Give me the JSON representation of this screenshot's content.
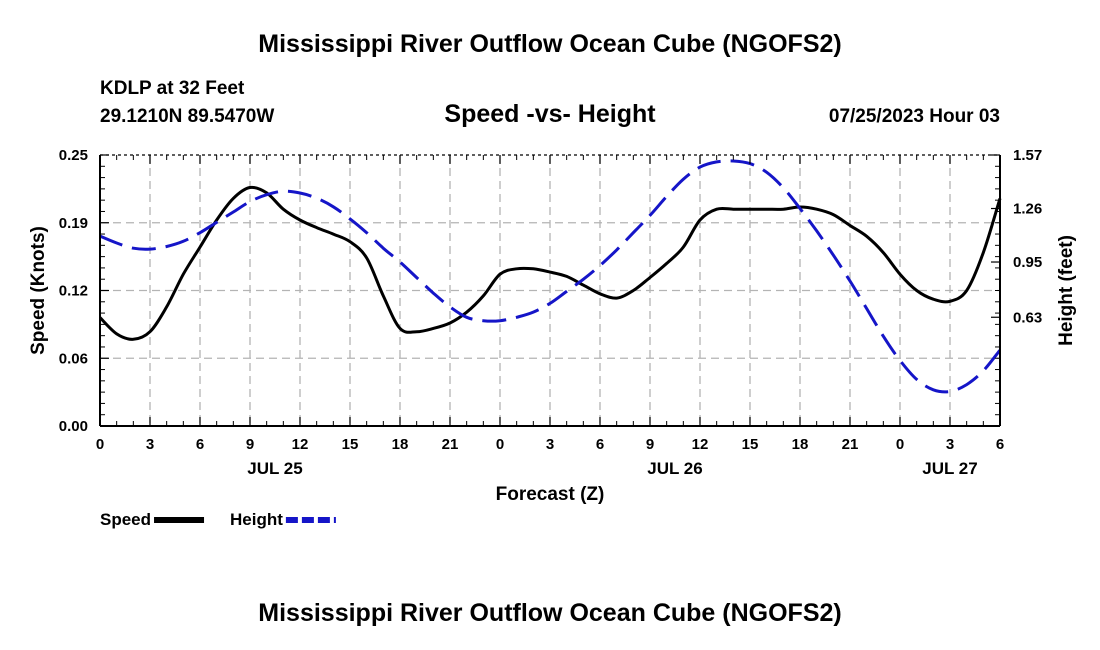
{
  "header": {
    "title": "Mississippi River Outflow Ocean Cube (NGOFS2)",
    "station": "KDLP at 32 Feet",
    "coords": "29.1210N  89.5470W",
    "subtitle": "Speed -vs- Height",
    "datetime": "07/25/2023 Hour 03"
  },
  "footer": {
    "title": "Mississippi River Outflow Ocean Cube (NGOFS2)"
  },
  "chart_data": {
    "type": "line",
    "title": "Speed -vs- Height",
    "xlabel": "Forecast (Z)",
    "ylabel": "Speed (Knots)",
    "y2label": "Height (feet)",
    "xlim": [
      0,
      54
    ],
    "ylim": [
      0,
      0.25
    ],
    "y2lim": [
      0,
      1.57
    ],
    "grid": true,
    "x_tick_labels": [
      "0",
      "3",
      "6",
      "9",
      "12",
      "15",
      "18",
      "21",
      "0",
      "3",
      "6",
      "9",
      "12",
      "15",
      "18",
      "21",
      "0",
      "3",
      "6"
    ],
    "y_tick_labels": [
      "0.00",
      "0.06",
      "0.12",
      "0.19",
      "0.25"
    ],
    "y2_tick_labels": [
      "0.63",
      "0.95",
      "1.26",
      "1.57"
    ],
    "date_labels": [
      {
        "label": "JUL 25",
        "x": 10.5
      },
      {
        "label": "JUL 26",
        "x": 34.5
      },
      {
        "label": "JUL 27",
        "x": 51
      }
    ],
    "series": [
      {
        "name": "Speed",
        "axis": "left",
        "color": "#000000",
        "dash": "solid",
        "x": [
          0,
          1,
          2,
          3,
          4,
          5,
          6,
          7,
          8,
          9,
          10,
          11,
          12,
          13,
          14,
          15,
          16,
          17,
          18,
          19,
          20,
          21,
          22,
          23,
          24,
          25,
          26,
          27,
          28,
          29,
          30,
          31,
          32,
          33,
          34,
          35,
          36,
          37,
          38,
          39,
          40,
          41,
          42,
          43,
          44,
          45,
          46,
          47,
          48,
          49,
          50,
          51,
          52,
          53,
          54
        ],
        "values": [
          0.1,
          0.085,
          0.08,
          0.087,
          0.11,
          0.14,
          0.165,
          0.19,
          0.21,
          0.22,
          0.215,
          0.2,
          0.19,
          0.183,
          0.177,
          0.17,
          0.155,
          0.12,
          0.09,
          0.087,
          0.09,
          0.095,
          0.105,
          0.12,
          0.14,
          0.145,
          0.145,
          0.142,
          0.138,
          0.13,
          0.122,
          0.118,
          0.125,
          0.137,
          0.15,
          0.165,
          0.19,
          0.2,
          0.2,
          0.2,
          0.2,
          0.2,
          0.202,
          0.2,
          0.195,
          0.185,
          0.175,
          0.16,
          0.14,
          0.125,
          0.117,
          0.115,
          0.125,
          0.16,
          0.21
        ]
      },
      {
        "name": "Height",
        "axis": "right",
        "color": "#1515c8",
        "dash": "dashed",
        "x": [
          0,
          1,
          2,
          3,
          4,
          5,
          6,
          7,
          8,
          9,
          10,
          11,
          12,
          13,
          14,
          15,
          16,
          17,
          18,
          19,
          20,
          21,
          22,
          23,
          24,
          25,
          26,
          27,
          28,
          29,
          30,
          31,
          32,
          33,
          34,
          35,
          36,
          37,
          38,
          39,
          40,
          41,
          42,
          43,
          44,
          45,
          46,
          47,
          48,
          49,
          50,
          51,
          52,
          53,
          54
        ],
        "values": [
          1.1,
          1.06,
          1.03,
          1.025,
          1.04,
          1.07,
          1.12,
          1.18,
          1.24,
          1.3,
          1.34,
          1.36,
          1.35,
          1.32,
          1.27,
          1.2,
          1.12,
          1.03,
          0.95,
          0.86,
          0.77,
          0.69,
          0.63,
          0.61,
          0.61,
          0.63,
          0.66,
          0.71,
          0.78,
          0.85,
          0.93,
          1.02,
          1.12,
          1.22,
          1.33,
          1.43,
          1.5,
          1.53,
          1.535,
          1.52,
          1.47,
          1.38,
          1.26,
          1.13,
          0.99,
          0.84,
          0.68,
          0.52,
          0.38,
          0.27,
          0.21,
          0.2,
          0.24,
          0.32,
          0.44
        ]
      }
    ],
    "legend": [
      {
        "label": "Speed",
        "color": "#000000",
        "dash": "solid"
      },
      {
        "label": "Height",
        "color": "#1515c8",
        "dash": "dashed"
      }
    ]
  }
}
